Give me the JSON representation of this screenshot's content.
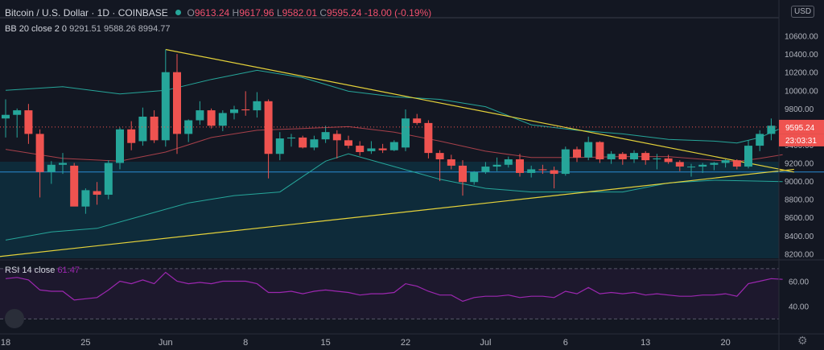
{
  "header": {
    "symbol": "Bitcoin / U.S. Dollar",
    "interval": "1D",
    "exchange": "COINBASE",
    "open_label": "O",
    "open": "9613.24",
    "high_label": "H",
    "high": "9617.96",
    "low_label": "L",
    "low": "9582.01",
    "close_label": "C",
    "close": "9595.24",
    "change": "-18.00",
    "change_pct": "(-0.19%)"
  },
  "indicators": {
    "bb_label": "BB 20 close 2 0",
    "bb_basis": "9291.51",
    "bb_upper": "9588.26",
    "bb_lower": "8994.77",
    "rsi_label": "RSI 14 close",
    "rsi_value": "61.47"
  },
  "price_axis": {
    "currency": "USD",
    "last_price": "9595.24",
    "countdown": "23:03:31"
  },
  "colors": {
    "background": "#131722",
    "up": "#26a69a",
    "down": "#ef5350",
    "bb_band": "#26a69a",
    "bb_basis": "#a7404a",
    "trendline": "#e5d23a",
    "rsi": "#9c27b0",
    "horizontal_line": "#2b8bd1"
  },
  "chart_data": [
    {
      "type": "candlestick",
      "title": "Bitcoin / U.S. Dollar, 1D, COINBASE",
      "ylim": [
        8150,
        10800
      ],
      "y_ticks": [
        8200,
        8400,
        8600,
        8800,
        9000,
        9200,
        9400,
        9600,
        9800,
        10000,
        10200,
        10400,
        10600
      ],
      "x_tick_labels": [
        "18",
        "25",
        "Jun",
        "8",
        "15",
        "22",
        "Jul",
        "6",
        "13",
        "20"
      ],
      "x_tick_indices": [
        0,
        7,
        14,
        21,
        28,
        35,
        42,
        49,
        56,
        63
      ],
      "horizontal_line": 9100,
      "candles": [
        {
          "o": 9690,
          "h": 9900,
          "l": 9480,
          "c": 9730
        },
        {
          "o": 9730,
          "h": 9800,
          "l": 9480,
          "c": 9780
        },
        {
          "o": 9780,
          "h": 9850,
          "l": 9410,
          "c": 9520
        },
        {
          "o": 9520,
          "h": 9570,
          "l": 8820,
          "c": 9100
        },
        {
          "o": 9100,
          "h": 9220,
          "l": 8970,
          "c": 9180
        },
        {
          "o": 9180,
          "h": 9310,
          "l": 9080,
          "c": 9200
        },
        {
          "o": 9170,
          "h": 9200,
          "l": 8740,
          "c": 8720
        },
        {
          "o": 8720,
          "h": 8920,
          "l": 8640,
          "c": 8900
        },
        {
          "o": 8890,
          "h": 8990,
          "l": 8740,
          "c": 8850
        },
        {
          "o": 8850,
          "h": 9230,
          "l": 8800,
          "c": 9200
        },
        {
          "o": 9200,
          "h": 9590,
          "l": 9130,
          "c": 9570
        },
        {
          "o": 9570,
          "h": 9660,
          "l": 9340,
          "c": 9420
        },
        {
          "o": 9440,
          "h": 9810,
          "l": 9390,
          "c": 9710
        },
        {
          "o": 9710,
          "h": 9780,
          "l": 9420,
          "c": 9450
        },
        {
          "o": 9450,
          "h": 10450,
          "l": 9380,
          "c": 10200
        },
        {
          "o": 10200,
          "h": 10400,
          "l": 9300,
          "c": 9520
        },
        {
          "o": 9520,
          "h": 9680,
          "l": 9430,
          "c": 9670
        },
        {
          "o": 9670,
          "h": 9880,
          "l": 9620,
          "c": 9780
        },
        {
          "o": 9780,
          "h": 9800,
          "l": 9580,
          "c": 9610
        },
        {
          "o": 9610,
          "h": 9780,
          "l": 9550,
          "c": 9750
        },
        {
          "o": 9750,
          "h": 9830,
          "l": 9680,
          "c": 9790
        },
        {
          "o": 9790,
          "h": 9990,
          "l": 9720,
          "c": 9780
        },
        {
          "o": 9780,
          "h": 9980,
          "l": 9700,
          "c": 9880
        },
        {
          "o": 9880,
          "h": 9900,
          "l": 9030,
          "c": 9300
        },
        {
          "o": 9300,
          "h": 9540,
          "l": 9230,
          "c": 9470
        },
        {
          "o": 9470,
          "h": 9520,
          "l": 9380,
          "c": 9480
        },
        {
          "o": 9480,
          "h": 9500,
          "l": 9360,
          "c": 9370
        },
        {
          "o": 9370,
          "h": 9500,
          "l": 9340,
          "c": 9460
        },
        {
          "o": 9460,
          "h": 9610,
          "l": 9420,
          "c": 9540
        },
        {
          "o": 9520,
          "h": 9560,
          "l": 9250,
          "c": 9450
        },
        {
          "o": 9450,
          "h": 9500,
          "l": 9360,
          "c": 9390
        },
        {
          "o": 9390,
          "h": 9440,
          "l": 9280,
          "c": 9320
        },
        {
          "o": 9330,
          "h": 9440,
          "l": 9300,
          "c": 9360
        },
        {
          "o": 9360,
          "h": 9410,
          "l": 9310,
          "c": 9340
        },
        {
          "o": 9340,
          "h": 9450,
          "l": 9330,
          "c": 9430
        },
        {
          "o": 9370,
          "h": 9790,
          "l": 9330,
          "c": 9690
        },
        {
          "o": 9690,
          "h": 9740,
          "l": 9620,
          "c": 9640
        },
        {
          "o": 9640,
          "h": 9670,
          "l": 9250,
          "c": 9310
        },
        {
          "o": 9310,
          "h": 9340,
          "l": 9000,
          "c": 9240
        },
        {
          "o": 9240,
          "h": 9290,
          "l": 9130,
          "c": 9170
        },
        {
          "o": 9170,
          "h": 9230,
          "l": 8840,
          "c": 8990
        },
        {
          "o": 8990,
          "h": 9110,
          "l": 8960,
          "c": 9100
        },
        {
          "o": 9100,
          "h": 9210,
          "l": 9080,
          "c": 9160
        },
        {
          "o": 9160,
          "h": 9260,
          "l": 9110,
          "c": 9180
        },
        {
          "o": 9180,
          "h": 9270,
          "l": 9150,
          "c": 9240
        },
        {
          "o": 9240,
          "h": 9300,
          "l": 9050,
          "c": 9090
        },
        {
          "o": 9090,
          "h": 9170,
          "l": 9040,
          "c": 9130
        },
        {
          "o": 9130,
          "h": 9180,
          "l": 9080,
          "c": 9120
        },
        {
          "o": 9120,
          "h": 9160,
          "l": 8920,
          "c": 9080
        },
        {
          "o": 9080,
          "h": 9380,
          "l": 9060,
          "c": 9350
        },
        {
          "o": 9350,
          "h": 9380,
          "l": 9210,
          "c": 9260
        },
        {
          "o": 9260,
          "h": 9490,
          "l": 9230,
          "c": 9430
        },
        {
          "o": 9430,
          "h": 9440,
          "l": 9200,
          "c": 9240
        },
        {
          "o": 9240,
          "h": 9330,
          "l": 9190,
          "c": 9300
        },
        {
          "o": 9300,
          "h": 9320,
          "l": 9180,
          "c": 9240
        },
        {
          "o": 9240,
          "h": 9340,
          "l": 9200,
          "c": 9310
        },
        {
          "o": 9310,
          "h": 9330,
          "l": 9180,
          "c": 9230
        },
        {
          "o": 9240,
          "h": 9300,
          "l": 9130,
          "c": 9250
        },
        {
          "o": 9250,
          "h": 9290,
          "l": 9190,
          "c": 9210
        },
        {
          "o": 9210,
          "h": 9230,
          "l": 9110,
          "c": 9160
        },
        {
          "o": 9160,
          "h": 9190,
          "l": 9050,
          "c": 9160
        },
        {
          "o": 9160,
          "h": 9200,
          "l": 9090,
          "c": 9180
        },
        {
          "o": 9180,
          "h": 9210,
          "l": 9120,
          "c": 9200
        },
        {
          "o": 9200,
          "h": 9240,
          "l": 9150,
          "c": 9230
        },
        {
          "o": 9230,
          "h": 9240,
          "l": 9130,
          "c": 9160
        },
        {
          "o": 9160,
          "h": 9450,
          "l": 9140,
          "c": 9390
        },
        {
          "o": 9390,
          "h": 9560,
          "l": 9330,
          "c": 9520
        },
        {
          "o": 9520,
          "h": 9690,
          "l": 9450,
          "c": 9610
        },
        {
          "o": 9613.24,
          "h": 9617.96,
          "l": 9582.01,
          "c": 9595.24
        }
      ],
      "bollinger": {
        "upper": [
          {
            "i": 0,
            "v": 10000
          },
          {
            "i": 5,
            "v": 10040
          },
          {
            "i": 10,
            "v": 9960
          },
          {
            "i": 14,
            "v": 10000
          },
          {
            "i": 18,
            "v": 10120
          },
          {
            "i": 22,
            "v": 10220
          },
          {
            "i": 26,
            "v": 10140
          },
          {
            "i": 30,
            "v": 9990
          },
          {
            "i": 34,
            "v": 9930
          },
          {
            "i": 38,
            "v": 9900
          },
          {
            "i": 42,
            "v": 9820
          },
          {
            "i": 46,
            "v": 9620
          },
          {
            "i": 50,
            "v": 9560
          },
          {
            "i": 54,
            "v": 9520
          },
          {
            "i": 58,
            "v": 9460
          },
          {
            "i": 62,
            "v": 9440
          },
          {
            "i": 64,
            "v": 9420
          },
          {
            "i": 66,
            "v": 9480
          },
          {
            "i": 68,
            "v": 9590
          }
        ],
        "basis": [
          {
            "i": 0,
            "v": 9350
          },
          {
            "i": 5,
            "v": 9250
          },
          {
            "i": 10,
            "v": 9220
          },
          {
            "i": 14,
            "v": 9320
          },
          {
            "i": 18,
            "v": 9480
          },
          {
            "i": 22,
            "v": 9560
          },
          {
            "i": 26,
            "v": 9580
          },
          {
            "i": 30,
            "v": 9600
          },
          {
            "i": 34,
            "v": 9540
          },
          {
            "i": 38,
            "v": 9440
          },
          {
            "i": 42,
            "v": 9330
          },
          {
            "i": 46,
            "v": 9260
          },
          {
            "i": 50,
            "v": 9260
          },
          {
            "i": 54,
            "v": 9270
          },
          {
            "i": 58,
            "v": 9270
          },
          {
            "i": 62,
            "v": 9230
          },
          {
            "i": 64,
            "v": 9215
          },
          {
            "i": 66,
            "v": 9250
          },
          {
            "i": 68,
            "v": 9291.51
          }
        ],
        "lower": [
          {
            "i": 0,
            "v": 8350
          },
          {
            "i": 4,
            "v": 8440
          },
          {
            "i": 8,
            "v": 8480
          },
          {
            "i": 12,
            "v": 8620
          },
          {
            "i": 16,
            "v": 8760
          },
          {
            "i": 20,
            "v": 8840
          },
          {
            "i": 24,
            "v": 8880
          },
          {
            "i": 28,
            "v": 9220
          },
          {
            "i": 30,
            "v": 9300
          },
          {
            "i": 34,
            "v": 9160
          },
          {
            "i": 38,
            "v": 9020
          },
          {
            "i": 42,
            "v": 8920
          },
          {
            "i": 46,
            "v": 8880
          },
          {
            "i": 50,
            "v": 8880
          },
          {
            "i": 54,
            "v": 8880
          },
          {
            "i": 58,
            "v": 8980
          },
          {
            "i": 62,
            "v": 9010
          },
          {
            "i": 66,
            "v": 9000
          },
          {
            "i": 68,
            "v": 8994.77
          }
        ]
      },
      "trendlines": [
        {
          "name": "",
          "from": {
            "i": 14,
            "v": 10450
          },
          "to": {
            "i": 69,
            "v": 9100
          }
        },
        {
          "name": "",
          "from": {
            "i": -0.5,
            "v": 8170
          },
          "to": {
            "i": 69,
            "v": 9130
          }
        }
      ]
    },
    {
      "type": "line",
      "title": "RSI 14 close",
      "ylim": [
        20,
        75
      ],
      "y_ticks": [
        40,
        60
      ],
      "bands": [
        70,
        30
      ],
      "values": [
        62,
        63,
        61,
        53,
        52,
        52,
        45,
        46,
        47,
        53,
        60,
        58,
        61,
        58,
        67,
        60,
        58,
        59,
        58,
        60,
        60,
        60,
        58,
        51,
        51,
        52,
        50,
        52,
        53,
        52,
        51,
        49,
        50,
        50,
        51,
        58,
        56,
        52,
        49,
        49,
        44,
        47,
        48,
        48,
        49,
        47,
        48,
        48,
        47,
        52,
        50,
        55,
        50,
        51,
        50,
        51,
        49,
        50,
        49,
        48,
        48,
        49,
        49,
        50,
        48,
        58,
        60,
        62,
        61.47
      ]
    }
  ]
}
